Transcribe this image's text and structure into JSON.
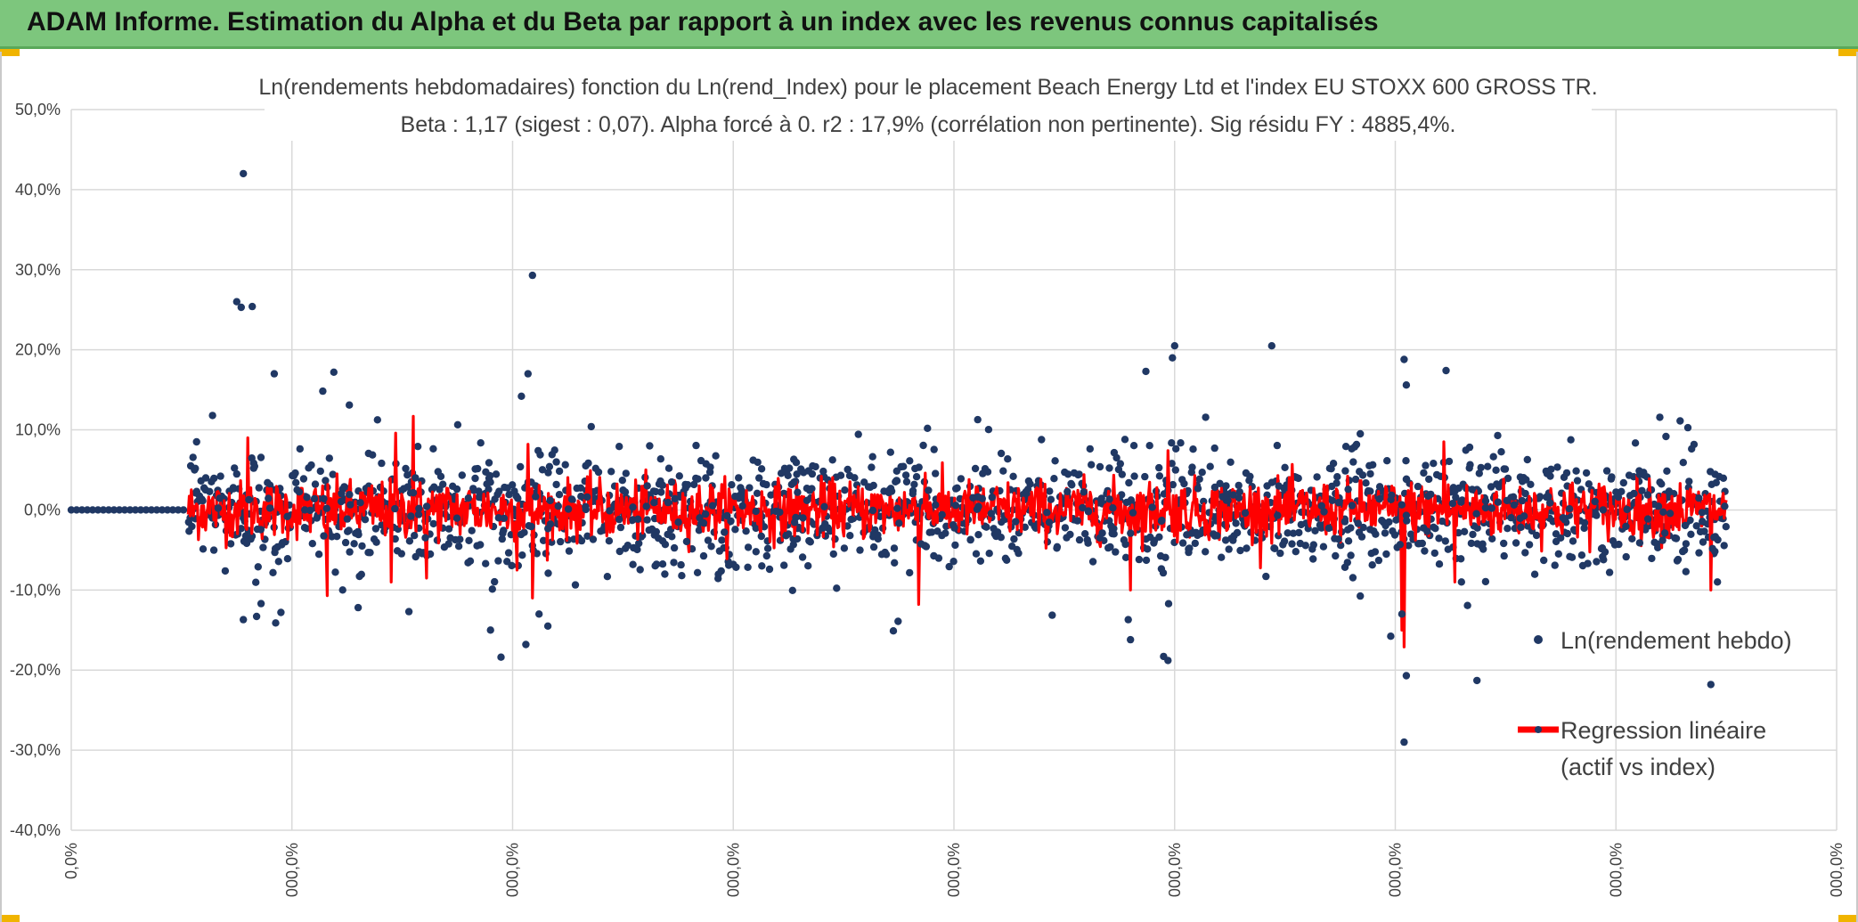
{
  "header": {
    "title": "ADAM Informe. Estimation du Alpha et du Beta par rapport à un index avec les revenus connus capitalisés"
  },
  "colors": {
    "header_bg": "#7dc67d",
    "scatter": "#203864",
    "regression": "#ff0000",
    "grid": "#d9d9d9"
  },
  "chart_data": {
    "type": "scatter",
    "title_line1": "Ln(rendements hebdomadaires) fonction du Ln(rend_Index) pour le placement Beach Energy Ltd et l'index EU STOXX 600 GROSS TR.",
    "title_line2": "Beta : 1,17 (sigest : 0,07). Alpha forcé à 0. r2 : 17,9% (corrélation non pertinente). Sig résidu FY : 4885,4%.",
    "ylim": [
      -0.4,
      0.5
    ],
    "y_ticks": [
      -0.4,
      -0.3,
      -0.2,
      -0.1,
      0.0,
      0.1,
      0.2,
      0.3,
      0.4,
      0.5
    ],
    "y_tick_labels": [
      "-40,0%",
      "-30,0%",
      "-20,0%",
      "-10,0%",
      "0,0%",
      "10,0%",
      "20,0%",
      "30,0%",
      "40,0%",
      "50,0%"
    ],
    "xlim": [
      0,
      8
    ],
    "x_ticks": [
      0,
      1,
      2,
      3,
      4,
      5,
      6,
      7,
      8
    ],
    "x_tick_labels": [
      "0,0%",
      "000,0%",
      "000,0%",
      "000,0%",
      "000,0%",
      "000,0%",
      "000,0%",
      "000,0%",
      "000,0%"
    ],
    "legend_position": "bottom-right",
    "grid": true,
    "series": [
      {
        "name": "Ln(rendement hebdo)",
        "style": "points",
        "zero_segment_x": [
          0,
          0.53
        ],
        "outliers": [
          [
            0.78,
            0.42
          ],
          [
            0.75,
            0.26
          ],
          [
            0.77,
            0.253
          ],
          [
            0.82,
            0.254
          ],
          [
            2.09,
            0.293
          ],
          [
            0.92,
            0.17
          ],
          [
            1.19,
            0.172
          ],
          [
            1.26,
            0.131
          ],
          [
            5.0,
            0.205
          ],
          [
            4.99,
            0.19
          ],
          [
            5.44,
            0.205
          ],
          [
            6.04,
            0.188
          ],
          [
            6.05,
            0.156
          ],
          [
            6.23,
            0.174
          ],
          [
            4.87,
            0.173
          ],
          [
            3.88,
            0.102
          ],
          [
            0.64,
            0.118
          ],
          [
            2.07,
            0.17
          ],
          [
            2.04,
            0.142
          ],
          [
            0.78,
            -0.137
          ],
          [
            0.84,
            -0.133
          ],
          [
            0.86,
            -0.117
          ],
          [
            0.95,
            -0.128
          ],
          [
            1.3,
            -0.122
          ],
          [
            1.23,
            -0.1
          ],
          [
            2.06,
            -0.168
          ],
          [
            2.12,
            -0.13
          ],
          [
            2.16,
            -0.145
          ],
          [
            1.9,
            -0.15
          ],
          [
            1.53,
            -0.127
          ],
          [
            4.79,
            -0.137
          ],
          [
            4.8,
            -0.162
          ],
          [
            4.95,
            -0.183
          ],
          [
            4.97,
            -0.188
          ],
          [
            6.04,
            -0.29
          ],
          [
            6.05,
            -0.207
          ],
          [
            6.03,
            -0.13
          ],
          [
            6.37,
            -0.213
          ],
          [
            7.43,
            -0.218
          ],
          [
            7.46,
            -0.09
          ],
          [
            6.3,
            -0.09
          ]
        ]
      },
      {
        "name": "Regression linéaire (actif vs index)",
        "style": "line",
        "beta": 1.17,
        "spikes": [
          [
            1.55,
            0.117
          ],
          [
            1.47,
            0.096
          ],
          [
            0.8,
            0.09
          ],
          [
            2.07,
            0.082
          ],
          [
            6.22,
            0.085
          ],
          [
            6.04,
            0.075
          ],
          [
            4.97,
            0.074
          ],
          [
            3.87,
            0.046
          ],
          [
            1.16,
            -0.107
          ],
          [
            1.45,
            -0.09
          ],
          [
            2.09,
            -0.11
          ],
          [
            3.84,
            -0.118
          ],
          [
            4.8,
            -0.1
          ],
          [
            6.04,
            -0.171
          ],
          [
            6.03,
            -0.15
          ],
          [
            7.43,
            -0.1
          ],
          [
            1.61,
            -0.085
          ],
          [
            2.02,
            -0.075
          ],
          [
            6.27,
            -0.09
          ]
        ]
      }
    ],
    "legend": [
      {
        "label": "Ln(rendement hebdo)",
        "marker": "point"
      },
      {
        "label_line1": "Regression linéaire",
        "label_line2": "(actif vs index)",
        "marker": "line"
      }
    ]
  }
}
